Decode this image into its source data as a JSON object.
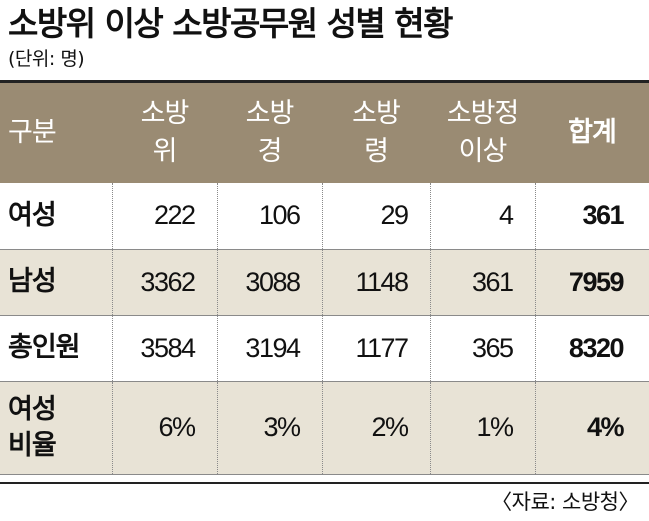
{
  "title": "소방위 이상 소방공무원 성별 현황",
  "unit": "(단위: 명)",
  "source": "〈자료: 소방청〉",
  "chart_data": {
    "type": "table",
    "title": "소방위 이상 소방공무원 성별 현황",
    "unit": "(단위: 명)",
    "columns": [
      "구분",
      "소방\n위",
      "소방\n경",
      "소방\n령",
      "소방정\n이상",
      "합계"
    ],
    "rows": [
      {
        "label": "여성",
        "values": [
          "222",
          "106",
          "29",
          "4",
          "361"
        ]
      },
      {
        "label": "남성",
        "values": [
          "3362",
          "3088",
          "1148",
          "361",
          "7959"
        ]
      },
      {
        "label": "총인원",
        "values": [
          "3584",
          "3194",
          "1177",
          "365",
          "8320"
        ]
      },
      {
        "label": "여성\n비율",
        "values": [
          "6%",
          "3%",
          "2%",
          "1%",
          "4%"
        ]
      }
    ],
    "source": "〈자료: 소방청〉"
  },
  "colors": {
    "header_bg": "#9a8b73",
    "shade_bg": "#e8e3d6",
    "header_text": "#ffffff"
  }
}
